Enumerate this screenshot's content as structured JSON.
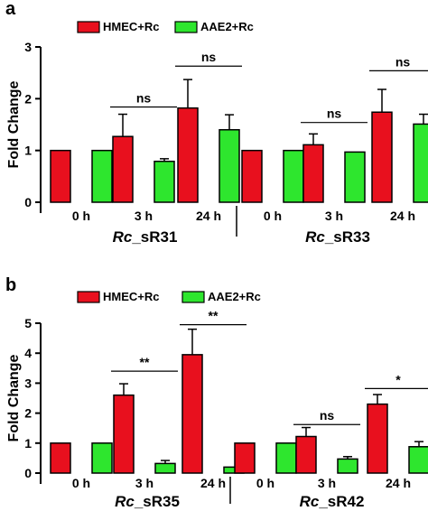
{
  "chart_data": [
    {
      "type": "bar",
      "panel": "a",
      "ylabel": "Fold Change",
      "ylim": [
        0,
        3
      ],
      "yticks": [
        0,
        1,
        2,
        3
      ],
      "legend": {
        "placement": "top-left",
        "entries": [
          "HMEC+Rc",
          "AAE2+Rc"
        ]
      },
      "colors": {
        "HMEC+Rc": "#e8101e",
        "AAE2+Rc": "#2ee62e"
      },
      "groups": [
        {
          "italic": "Rc",
          "rest": "_sR31",
          "categories": [
            "0 h",
            "3 h",
            "24 h"
          ]
        },
        {
          "italic": "Rc",
          "rest": "_sR33",
          "categories": [
            "0 h",
            "3 h",
            "24 h"
          ]
        }
      ],
      "series": [
        {
          "name": "HMEC+Rc",
          "values": [
            1.0,
            1.27,
            1.82,
            1.0,
            1.11,
            1.74
          ],
          "errors": [
            0,
            0.43,
            0.55,
            0,
            0.21,
            0.44
          ]
        },
        {
          "name": "AAE2+Rc",
          "values": [
            1.0,
            0.79,
            1.4,
            1.0,
            0.97,
            1.51
          ],
          "errors": [
            0,
            0.05,
            0.29,
            0,
            0,
            0.19
          ]
        }
      ],
      "significance": [
        {
          "group": 0,
          "category": 1,
          "label": "ns",
          "level": 1.84
        },
        {
          "group": 0,
          "category": 2,
          "label": "ns",
          "level": 2.63
        },
        {
          "group": 1,
          "category": 1,
          "label": "ns",
          "level": 1.54
        },
        {
          "group": 1,
          "category": 2,
          "label": "ns",
          "level": 2.54
        }
      ]
    },
    {
      "type": "bar",
      "panel": "b",
      "ylabel": "Fold Change",
      "ylim": [
        0,
        5
      ],
      "yticks": [
        0,
        1,
        2,
        3,
        4,
        5
      ],
      "legend": {
        "placement": "top-left",
        "entries": [
          "HMEC+Rc",
          "AAE2+Rc"
        ]
      },
      "colors": {
        "HMEC+Rc": "#e8101e",
        "AAE2+Rc": "#2ee62e"
      },
      "groups": [
        {
          "italic": "Rc",
          "rest": "_sR35",
          "categories": [
            "0 h",
            "3 h",
            "24 h"
          ]
        },
        {
          "italic": "Rc",
          "rest": "_sR42",
          "categories": [
            "0 h",
            "3 h",
            "24 h"
          ]
        }
      ],
      "series": [
        {
          "name": "HMEC+Rc",
          "values": [
            1.0,
            2.6,
            3.95,
            1.0,
            1.22,
            2.3
          ],
          "errors": [
            0,
            0.38,
            0.85,
            0,
            0.3,
            0.32
          ]
        },
        {
          "name": "AAE2+Rc",
          "values": [
            1.0,
            0.32,
            0.2,
            1.0,
            0.47,
            0.88
          ],
          "errors": [
            0,
            0.1,
            0,
            0,
            0.08,
            0.17
          ]
        }
      ],
      "significance": [
        {
          "group": 0,
          "category": 1,
          "label": "**",
          "level": 3.4
        },
        {
          "group": 0,
          "category": 2,
          "label": "**",
          "level": 4.95
        },
        {
          "group": 1,
          "category": 1,
          "label": "ns",
          "level": 1.62
        },
        {
          "group": 1,
          "category": 2,
          "label": "*",
          "level": 2.82
        }
      ]
    }
  ]
}
